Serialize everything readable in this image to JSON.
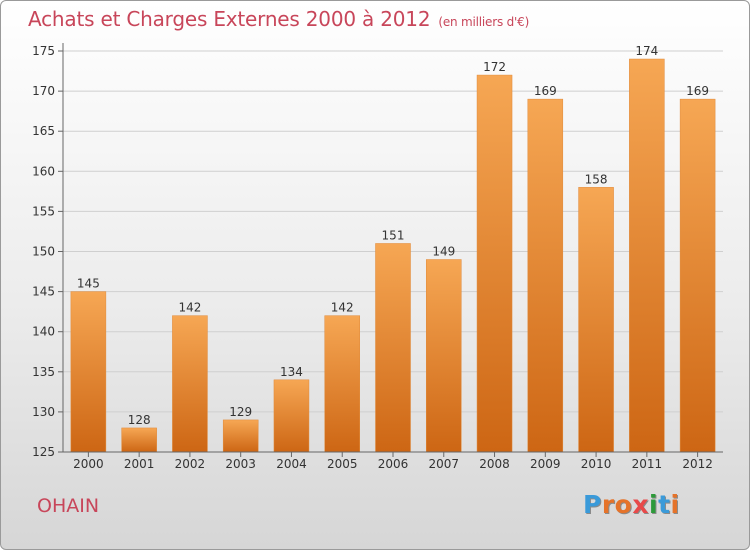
{
  "title": "Achats et Charges Externes 2000 à 2012",
  "subtitle": "(en milliers d'€)",
  "city": "OHAIN",
  "logo": {
    "letters": [
      "P",
      "r",
      "o",
      "x",
      "i",
      "t",
      "i"
    ],
    "colors": [
      "#3a9ad9",
      "#e5732a",
      "#e5732a",
      "#e84a4a",
      "#2d9a3a",
      "#3a9ad9",
      "#e5732a"
    ]
  },
  "chart_data": {
    "type": "bar",
    "categories": [
      "2000",
      "2001",
      "2002",
      "2003",
      "2004",
      "2005",
      "2006",
      "2007",
      "2008",
      "2009",
      "2010",
      "2011",
      "2012"
    ],
    "values": [
      145,
      128,
      142,
      129,
      134,
      142,
      151,
      149,
      172,
      169,
      158,
      174,
      169
    ],
    "ylim": [
      125,
      175
    ],
    "yticks": [
      125,
      130,
      135,
      140,
      145,
      150,
      155,
      160,
      165,
      170,
      175
    ],
    "grid": true,
    "bar_color": "#f0923a"
  }
}
